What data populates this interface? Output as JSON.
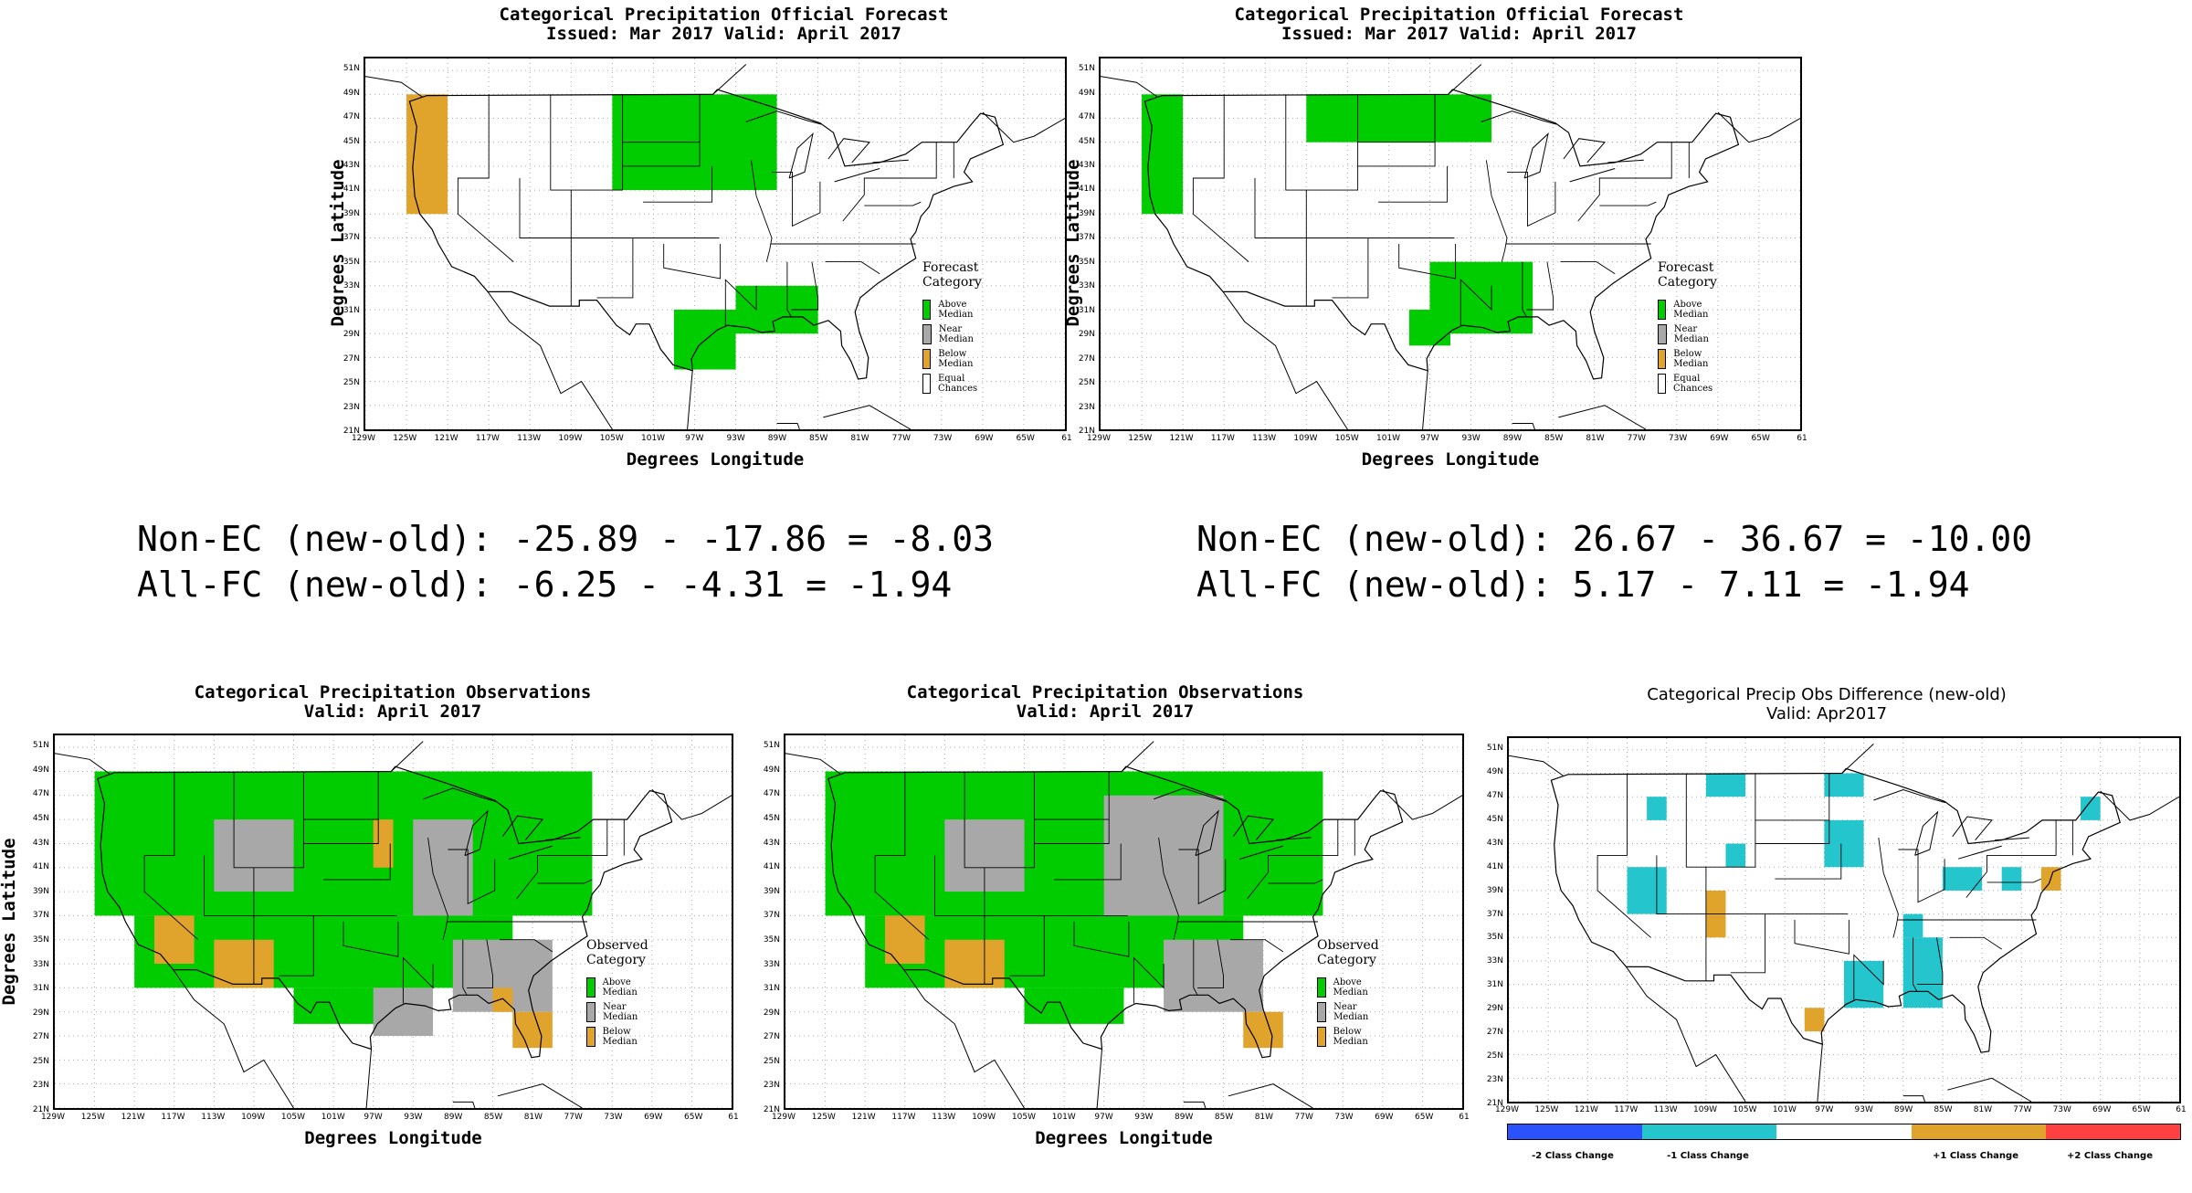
{
  "colors": {
    "above": "#00cc00",
    "near": "#a8a8a8",
    "below": "#e0a32c",
    "ec": "#ffffff",
    "m2": "#2a52ff",
    "m1": "#24c5cc",
    "p1": "#e0a32c",
    "p2": "#ff4040",
    "zero": "#ffffff"
  },
  "axes": {
    "x_ticks": [
      "129W",
      "125W",
      "121W",
      "117W",
      "113W",
      "109W",
      "105W",
      "101W",
      "97W",
      "93W",
      "89W",
      "85W",
      "81W",
      "77W",
      "73W",
      "69W",
      "65W",
      "61"
    ],
    "y_ticks": [
      "51N",
      "49N",
      "47N",
      "45N",
      "43N",
      "41N",
      "39N",
      "37N",
      "35N",
      "33N",
      "31N",
      "29N",
      "27N",
      "25N",
      "23N",
      "21N"
    ],
    "xlabel": "Degrees Longitude",
    "ylabel": "Degrees Latitude"
  },
  "panels": {
    "fc_old": {
      "title1": "Categorical Precipitation Official Forecast",
      "title2": "Issued: Mar 2017 Valid: April 2017",
      "legend_title": "Forecast Category",
      "legend": [
        "Above Median",
        "Near Median",
        "Below Median",
        "Equal Chances"
      ]
    },
    "fc_new": {
      "title1": "Categorical Precipitation Official Forecast",
      "title2": "Issued: Mar 2017 Valid: April 2017",
      "legend_title": "Forecast Category",
      "legend": [
        "Above Median",
        "Near Median",
        "Below Median",
        "Equal Chances"
      ]
    },
    "obs_old": {
      "title1": "Categorical Precipitation Observations",
      "title2": "Valid: April 2017",
      "legend_title": "Observed Category",
      "legend": [
        "Above Median",
        "Near Median",
        "Below Median"
      ]
    },
    "obs_new": {
      "title1": "Categorical Precipitation Observations",
      "title2": "Valid: April 2017",
      "legend_title": "Observed Category",
      "legend": [
        "Above Median",
        "Near Median",
        "Below Median"
      ]
    },
    "diff": {
      "title1": "Categorical Precip Obs Difference (new-old)",
      "title2": "Valid: Apr2017",
      "cbar_labels": [
        "-2 Class Change",
        "-1 Class Change",
        "+1 Class Change",
        "+2 Class Change"
      ]
    }
  },
  "stats": {
    "left_line1": "Non-EC (new-old): -25.89 - -17.86 = -8.03",
    "left_line2": "All-FC (new-old): -6.25 - -4.31 = -1.94",
    "right_line1": "Non-EC (new-old): 26.67 - 36.67 = -10.00",
    "right_line2": "All-FC (new-old): 5.17 - 7.11 = -1.94"
  },
  "map_data": {
    "fc_old": [
      {
        "c": "below",
        "lon": [
          -125,
          -121
        ],
        "lat": [
          39,
          49
        ]
      },
      {
        "c": "above",
        "lon": [
          -105,
          -89
        ],
        "lat": [
          41,
          49
        ]
      },
      {
        "c": "above",
        "lon": [
          -93,
          -85
        ],
        "lat": [
          29,
          33
        ]
      },
      {
        "c": "above",
        "lon": [
          -99,
          -93
        ],
        "lat": [
          26,
          31
        ]
      }
    ],
    "fc_new": [
      {
        "c": "above",
        "lon": [
          -125,
          -121
        ],
        "lat": [
          39,
          49
        ]
      },
      {
        "c": "above",
        "lon": [
          -109,
          -91
        ],
        "lat": [
          45,
          49
        ]
      },
      {
        "c": "above",
        "lon": [
          -97,
          -87
        ],
        "lat": [
          29,
          35
        ]
      },
      {
        "c": "above",
        "lon": [
          -99,
          -95
        ],
        "lat": [
          28,
          31
        ]
      }
    ],
    "obs_old": [
      {
        "c": "above",
        "lon": [
          -125,
          -75
        ],
        "lat": [
          37,
          49
        ]
      },
      {
        "c": "above",
        "lon": [
          -121,
          -83
        ],
        "lat": [
          31,
          37
        ]
      },
      {
        "c": "above",
        "lon": [
          -105,
          -95
        ],
        "lat": [
          28,
          31
        ]
      },
      {
        "c": "near",
        "lon": [
          -113,
          -105
        ],
        "lat": [
          39,
          45
        ]
      },
      {
        "c": "near",
        "lon": [
          -93,
          -87
        ],
        "lat": [
          37,
          45
        ]
      },
      {
        "c": "near",
        "lon": [
          -89,
          -79
        ],
        "lat": [
          29,
          35
        ]
      },
      {
        "c": "near",
        "lon": [
          -97,
          -91
        ],
        "lat": [
          27,
          31
        ]
      },
      {
        "c": "below",
        "lon": [
          -119,
          -115
        ],
        "lat": [
          33,
          37
        ]
      },
      {
        "c": "below",
        "lon": [
          -113,
          -107
        ],
        "lat": [
          31,
          35
        ]
      },
      {
        "c": "below",
        "lon": [
          -97,
          -95
        ],
        "lat": [
          41,
          45
        ]
      },
      {
        "c": "below",
        "lon": [
          -85,
          -83
        ],
        "lat": [
          29,
          31
        ]
      },
      {
        "c": "below",
        "lon": [
          -83,
          -79
        ],
        "lat": [
          26,
          29
        ]
      }
    ],
    "obs_new": [
      {
        "c": "above",
        "lon": [
          -125,
          -75
        ],
        "lat": [
          37,
          49
        ]
      },
      {
        "c": "above",
        "lon": [
          -121,
          -83
        ],
        "lat": [
          31,
          37
        ]
      },
      {
        "c": "above",
        "lon": [
          -105,
          -95
        ],
        "lat": [
          28,
          31
        ]
      },
      {
        "c": "near",
        "lon": [
          -113,
          -105
        ],
        "lat": [
          39,
          45
        ]
      },
      {
        "c": "near",
        "lon": [
          -97,
          -85
        ],
        "lat": [
          37,
          47
        ]
      },
      {
        "c": "near",
        "lon": [
          -91,
          -81
        ],
        "lat": [
          29,
          35
        ]
      },
      {
        "c": "below",
        "lon": [
          -119,
          -115
        ],
        "lat": [
          33,
          37
        ]
      },
      {
        "c": "below",
        "lon": [
          -113,
          -107
        ],
        "lat": [
          31,
          35
        ]
      },
      {
        "c": "below",
        "lon": [
          -83,
          -79
        ],
        "lat": [
          26,
          29
        ]
      }
    ],
    "diff": [
      {
        "c": "m1",
        "lon": [
          -109,
          -105
        ],
        "lat": [
          47,
          49
        ]
      },
      {
        "c": "m1",
        "lon": [
          -115,
          -113
        ],
        "lat": [
          45,
          47
        ]
      },
      {
        "c": "m1",
        "lon": [
          -107,
          -105
        ],
        "lat": [
          41,
          43
        ]
      },
      {
        "c": "m1",
        "lon": [
          -117,
          -113
        ],
        "lat": [
          37,
          41
        ]
      },
      {
        "c": "m1",
        "lon": [
          -97,
          -93
        ],
        "lat": [
          47,
          49
        ]
      },
      {
        "c": "m1",
        "lon": [
          -97,
          -93
        ],
        "lat": [
          41,
          45
        ]
      },
      {
        "c": "m1",
        "lon": [
          -85,
          -81
        ],
        "lat": [
          39,
          41
        ]
      },
      {
        "c": "m1",
        "lon": [
          -79,
          -77
        ],
        "lat": [
          39,
          41
        ]
      },
      {
        "c": "m1",
        "lon": [
          -71,
          -69
        ],
        "lat": [
          45,
          47
        ]
      },
      {
        "c": "m1",
        "lon": [
          -89,
          -87
        ],
        "lat": [
          35,
          37
        ]
      },
      {
        "c": "m1",
        "lon": [
          -89,
          -85
        ],
        "lat": [
          29,
          35
        ]
      },
      {
        "c": "m1",
        "lon": [
          -95,
          -91
        ],
        "lat": [
          29,
          33
        ]
      },
      {
        "c": "p1",
        "lon": [
          -109,
          -107
        ],
        "lat": [
          35,
          39
        ]
      },
      {
        "c": "p1",
        "lon": [
          -75,
          -73
        ],
        "lat": [
          39,
          41
        ]
      },
      {
        "c": "p1",
        "lon": [
          -99,
          -97
        ],
        "lat": [
          27,
          29
        ]
      }
    ]
  }
}
